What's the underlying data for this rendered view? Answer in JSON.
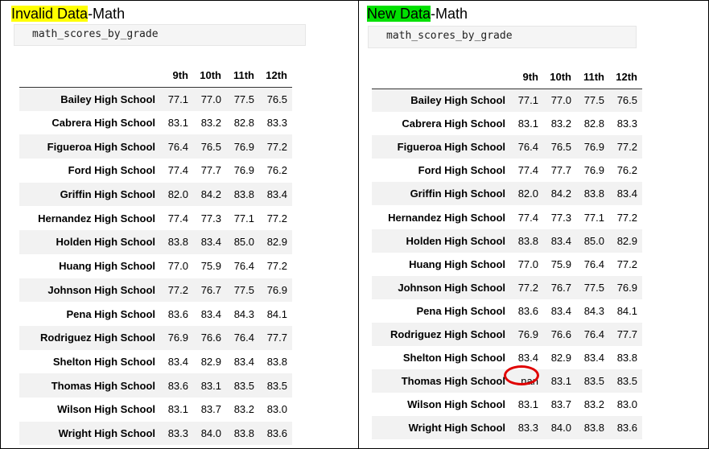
{
  "left_panel": {
    "title_highlight": "Invalid Data",
    "title_rest": "-Math",
    "code": "math_scores_by_grade",
    "columns": [
      "",
      "9th",
      "10th",
      "11th",
      "12th"
    ],
    "rows": [
      {
        "school": "Bailey High School",
        "g9": "77.1",
        "g10": "77.0",
        "g11": "77.5",
        "g12": "76.5"
      },
      {
        "school": "Cabrera High School",
        "g9": "83.1",
        "g10": "83.2",
        "g11": "82.8",
        "g12": "83.3"
      },
      {
        "school": "Figueroa High School",
        "g9": "76.4",
        "g10": "76.5",
        "g11": "76.9",
        "g12": "77.2"
      },
      {
        "school": "Ford High School",
        "g9": "77.4",
        "g10": "77.7",
        "g11": "76.9",
        "g12": "76.2"
      },
      {
        "school": "Griffin High School",
        "g9": "82.0",
        "g10": "84.2",
        "g11": "83.8",
        "g12": "83.4"
      },
      {
        "school": "Hernandez High School",
        "g9": "77.4",
        "g10": "77.3",
        "g11": "77.1",
        "g12": "77.2"
      },
      {
        "school": "Holden High School",
        "g9": "83.8",
        "g10": "83.4",
        "g11": "85.0",
        "g12": "82.9"
      },
      {
        "school": "Huang High School",
        "g9": "77.0",
        "g10": "75.9",
        "g11": "76.4",
        "g12": "77.2"
      },
      {
        "school": "Johnson High School",
        "g9": "77.2",
        "g10": "76.7",
        "g11": "77.5",
        "g12": "76.9"
      },
      {
        "school": "Pena High School",
        "g9": "83.6",
        "g10": "83.4",
        "g11": "84.3",
        "g12": "84.1"
      },
      {
        "school": "Rodriguez High School",
        "g9": "76.9",
        "g10": "76.6",
        "g11": "76.4",
        "g12": "77.7"
      },
      {
        "school": "Shelton High School",
        "g9": "83.4",
        "g10": "82.9",
        "g11": "83.4",
        "g12": "83.8"
      },
      {
        "school": "Thomas High School",
        "g9": "83.6",
        "g10": "83.1",
        "g11": "83.5",
        "g12": "83.5"
      },
      {
        "school": "Wilson High School",
        "g9": "83.1",
        "g10": "83.7",
        "g11": "83.2",
        "g12": "83.0"
      },
      {
        "school": "Wright High School",
        "g9": "83.3",
        "g10": "84.0",
        "g11": "83.8",
        "g12": "83.6"
      }
    ]
  },
  "right_panel": {
    "title_highlight": "New Data",
    "title_rest": "-Math",
    "code": "math_scores_by_grade",
    "columns": [
      "",
      "9th",
      "10th",
      "11th",
      "12th"
    ],
    "rows": [
      {
        "school": "Bailey High School",
        "g9": "77.1",
        "g10": "77.0",
        "g11": "77.5",
        "g12": "76.5"
      },
      {
        "school": "Cabrera High School",
        "g9": "83.1",
        "g10": "83.2",
        "g11": "82.8",
        "g12": "83.3"
      },
      {
        "school": "Figueroa High School",
        "g9": "76.4",
        "g10": "76.5",
        "g11": "76.9",
        "g12": "77.2"
      },
      {
        "school": "Ford High School",
        "g9": "77.4",
        "g10": "77.7",
        "g11": "76.9",
        "g12": "76.2"
      },
      {
        "school": "Griffin High School",
        "g9": "82.0",
        "g10": "84.2",
        "g11": "83.8",
        "g12": "83.4"
      },
      {
        "school": "Hernandez High School",
        "g9": "77.4",
        "g10": "77.3",
        "g11": "77.1",
        "g12": "77.2"
      },
      {
        "school": "Holden High School",
        "g9": "83.8",
        "g10": "83.4",
        "g11": "85.0",
        "g12": "82.9"
      },
      {
        "school": "Huang High School",
        "g9": "77.0",
        "g10": "75.9",
        "g11": "76.4",
        "g12": "77.2"
      },
      {
        "school": "Johnson High School",
        "g9": "77.2",
        "g10": "76.7",
        "g11": "77.5",
        "g12": "76.9"
      },
      {
        "school": "Pena High School",
        "g9": "83.6",
        "g10": "83.4",
        "g11": "84.3",
        "g12": "84.1"
      },
      {
        "school": "Rodriguez High School",
        "g9": "76.9",
        "g10": "76.6",
        "g11": "76.4",
        "g12": "77.7"
      },
      {
        "school": "Shelton High School",
        "g9": "83.4",
        "g10": "82.9",
        "g11": "83.4",
        "g12": "83.8"
      },
      {
        "school": "Thomas High School",
        "g9": "nan",
        "g10": "83.1",
        "g11": "83.5",
        "g12": "83.5"
      },
      {
        "school": "Wilson High School",
        "g9": "83.1",
        "g10": "83.7",
        "g11": "83.2",
        "g12": "83.0"
      },
      {
        "school": "Wright High School",
        "g9": "83.3",
        "g10": "84.0",
        "g11": "83.8",
        "g12": "83.6"
      }
    ],
    "circled_cell_row": "Thomas High School",
    "circled_cell_column": "9th"
  },
  "colors": {
    "invalid_highlight": "#ffff00",
    "new_highlight": "#00e000",
    "circle": "#e00000",
    "row_stripe": "#f2f2f2"
  }
}
